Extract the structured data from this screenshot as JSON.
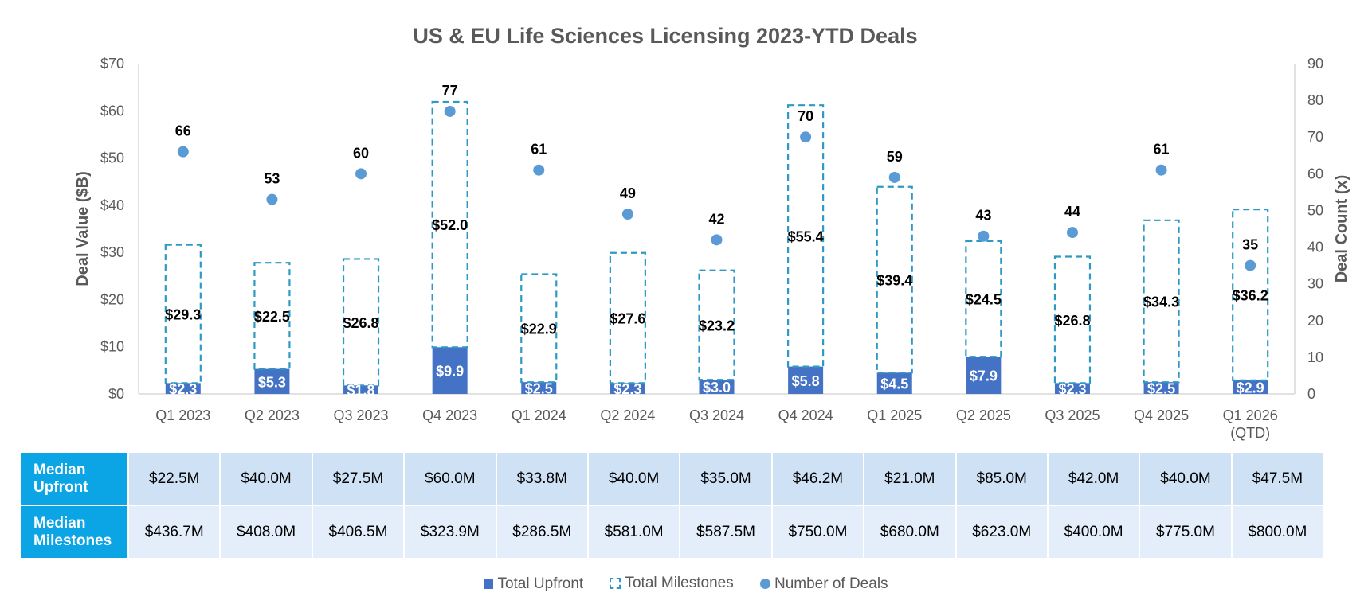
{
  "chart_data": {
    "type": "bar",
    "title": "US & EU Life Sciences Licensing 2023-YTD Deals",
    "ylabel": "Deal Value ($B)",
    "y2label": "Deal Count (x)",
    "ylim": [
      0,
      70
    ],
    "y2lim": [
      0,
      90
    ],
    "yticks": [
      "$0",
      "$10",
      "$20",
      "$30",
      "$40",
      "$50",
      "$60",
      "$70"
    ],
    "y2ticks": [
      "0",
      "10",
      "20",
      "30",
      "40",
      "50",
      "60",
      "70",
      "80",
      "90"
    ],
    "categories": [
      "Q1 2023",
      "Q2 2023",
      "Q3 2023",
      "Q4 2023",
      "Q1 2024",
      "Q2 2024",
      "Q3 2024",
      "Q4 2024",
      "Q1 2025",
      "Q2 2025",
      "Q3 2025",
      "Q4 2025",
      "Q1 2026\n(QTD)"
    ],
    "series": [
      {
        "name": "Total Upfront",
        "values": [
          2.3,
          5.3,
          1.8,
          9.9,
          2.5,
          2.3,
          3.0,
          5.8,
          4.5,
          7.9,
          2.3,
          2.5,
          2.9
        ],
        "labels": [
          "$2.3",
          "$5.3",
          "$1.8",
          "$9.9",
          "$2.5",
          "$2.3",
          "$3.0",
          "$5.8",
          "$4.5",
          "$7.9",
          "$2.3",
          "$2.5",
          "$2.9"
        ]
      },
      {
        "name": "Total Milestones",
        "values": [
          29.3,
          22.5,
          26.8,
          52.0,
          22.9,
          27.6,
          23.2,
          55.4,
          39.4,
          24.5,
          26.8,
          34.3,
          36.2
        ],
        "labels": [
          "$29.3",
          "$22.5",
          "$26.8",
          "$52.0",
          "$22.9",
          "$27.6",
          "$23.2",
          "$55.4",
          "$39.4",
          "$24.5",
          "$26.8",
          "$34.3",
          "$36.2"
        ]
      },
      {
        "name": "Number of Deals",
        "axis": "secondary",
        "values": [
          66,
          53,
          60,
          77,
          61,
          49,
          42,
          70,
          59,
          43,
          44,
          61,
          35
        ]
      }
    ],
    "colors": {
      "upfront": "#4472c4",
      "milestones": "#2e9ac4",
      "deals": "#5b9bd5",
      "axis": "#595959"
    },
    "legend_position": "bottom",
    "grid": false
  },
  "table": {
    "rows": [
      {
        "label": "Median Upfront",
        "values": [
          "$22.5M",
          "$40.0M",
          "$27.5M",
          "$60.0M",
          "$33.8M",
          "$40.0M",
          "$35.0M",
          "$46.2M",
          "$21.0M",
          "$85.0M",
          "$42.0M",
          "$40.0M",
          "$47.5M"
        ]
      },
      {
        "label": "Median Milestones",
        "values": [
          "$436.7M",
          "$408.0M",
          "$406.5M",
          "$323.9M",
          "$286.5M",
          "$581.0M",
          "$587.5M",
          "$750.0M",
          "$680.0M",
          "$623.0M",
          "$400.0M",
          "$775.0M",
          "$800.0M"
        ]
      }
    ]
  },
  "legend": {
    "upfront": "Total Upfront",
    "milestones": "Total Milestones",
    "deals": "Number of Deals"
  }
}
